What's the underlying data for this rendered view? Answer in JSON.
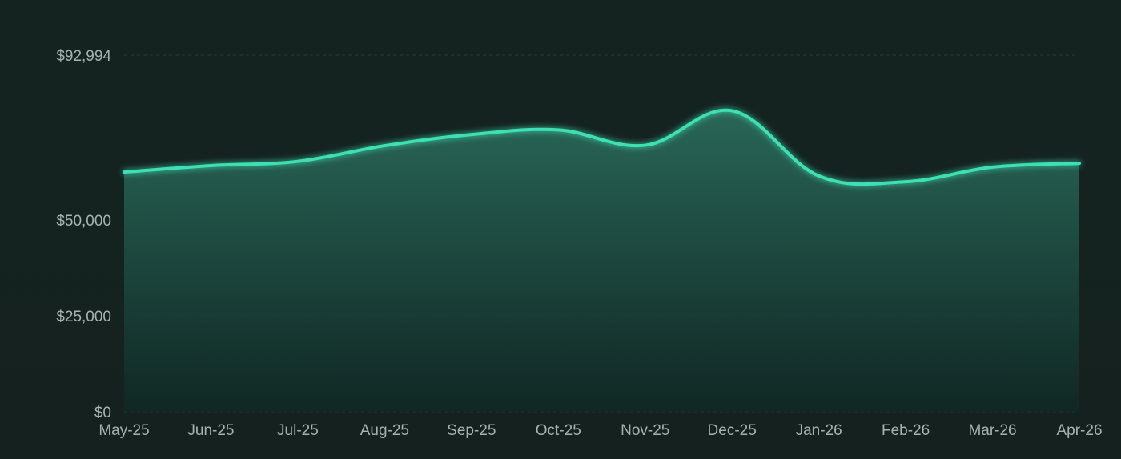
{
  "chart_data": {
    "type": "area",
    "title": "",
    "xlabel": "",
    "ylabel": "",
    "categories": [
      "May-25",
      "Jun-25",
      "Jul-25",
      "Aug-25",
      "Sep-25",
      "Oct-25",
      "Nov-25",
      "Dec-25",
      "Jan-26",
      "Feb-26",
      "Mar-26",
      "Apr-26"
    ],
    "values": [
      62500,
      64200,
      65300,
      69400,
      72300,
      73500,
      69500,
      78500,
      61500,
      60000,
      63800,
      64800
    ],
    "y_ticks": [
      0,
      25000,
      50000,
      92994
    ],
    "y_tick_labels": [
      "$0",
      "$25,000",
      "$50,000",
      "$92,994"
    ],
    "ylim": [
      0,
      92994
    ],
    "grid": true,
    "legend": "none",
    "colors": {
      "line": "#3ee0b4",
      "fill_top": "#2a6a5a",
      "fill_bottom": "#102825",
      "background": "#15211f",
      "grid": "#2a3a36",
      "tick_text": "#a8b3af"
    }
  }
}
